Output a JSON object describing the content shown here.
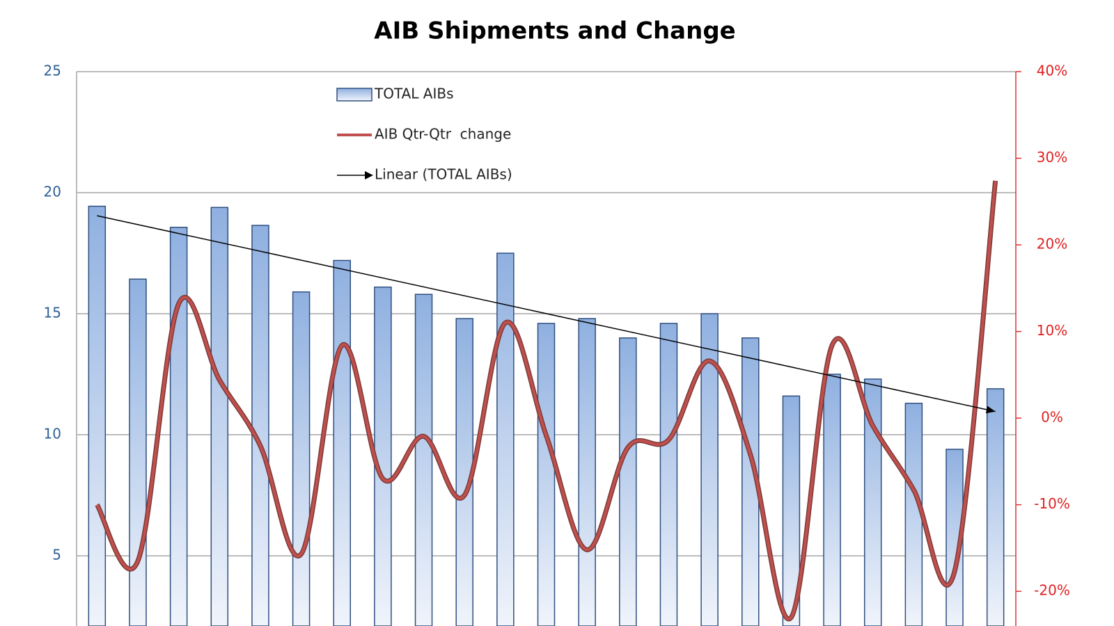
{
  "chart_data": {
    "type": "bar_line",
    "title": "AIB Shipments and Change",
    "categories": [
      null,
      null,
      null,
      null,
      null,
      null,
      null,
      null,
      null,
      null,
      null,
      null,
      null,
      null,
      null,
      null,
      null,
      null,
      null,
      null,
      null,
      null,
      null
    ],
    "series": [
      {
        "name": "TOTAL AIBs",
        "type": "bar",
        "color": "#8fb0e0",
        "values": [
          19.44,
          16.43,
          18.57,
          19.39,
          18.65,
          15.9,
          17.2,
          16.1,
          15.8,
          14.8,
          17.5,
          14.6,
          14.8,
          14.0,
          14.6,
          15.0,
          14.0,
          11.6,
          12.5,
          12.3,
          11.3,
          9.4,
          11.9
        ]
      },
      {
        "name": "AIB Qtr-Qtr  change",
        "type": "line",
        "axis": "y2",
        "color": "#c0504d",
        "values": [
          -10,
          -16.5,
          13.2,
          4.4,
          -3.2,
          -15.7,
          8.4,
          -7,
          -2.1,
          -8.9,
          11,
          -2,
          -15.2,
          -3.4,
          -2.5,
          6.6,
          -4.2,
          -23,
          8.4,
          -0.9,
          -8.3,
          -17.7,
          27.4
        ]
      }
    ],
    "trendline": {
      "name": "Linear (TOTAL AIBs)",
      "color": "#000000",
      "values": [
        19.05,
        10.96
      ]
    },
    "ylim": [
      2.1,
      25
    ],
    "yticks": [
      5,
      10,
      15,
      20,
      25
    ],
    "y2lim": [
      -24,
      40
    ],
    "y2ticks": [
      {
        "value": -20,
        "label": "-20%"
      },
      {
        "value": -10,
        "label": "-10%"
      },
      {
        "value": 0,
        "label": "0%"
      },
      {
        "value": 10,
        "label": "10%"
      },
      {
        "value": 20,
        "label": "20%"
      },
      {
        "value": 30,
        "label": "30%"
      },
      {
        "value": 40,
        "label": "40%"
      }
    ],
    "grid": true
  }
}
